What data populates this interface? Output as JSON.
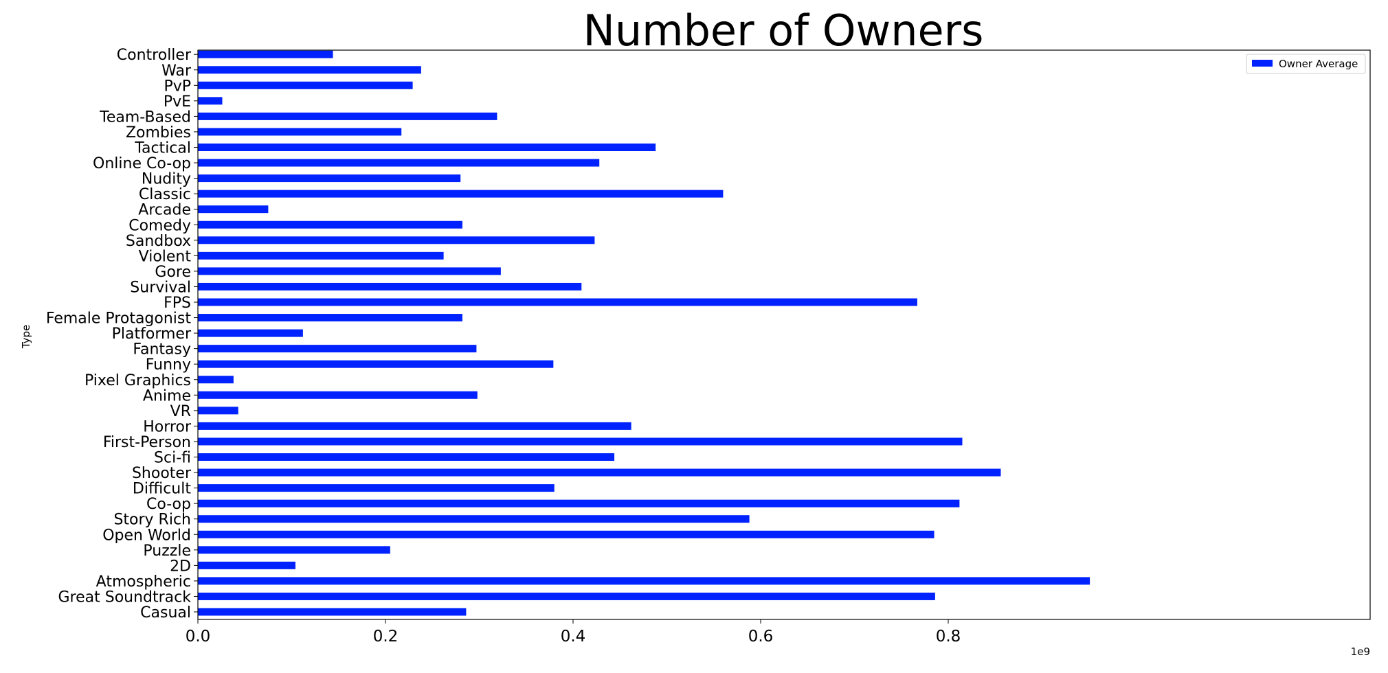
{
  "chart_data": {
    "type": "bar",
    "orientation": "horizontal",
    "title": "Number of Owners",
    "xlabel": "",
    "ylabel": "Type",
    "x_offset_label": "1e9",
    "xlim": [
      0,
      1.0
    ],
    "xticks": [
      "0.0",
      "0.2",
      "0.4",
      "0.6",
      "0.8"
    ],
    "xtick_values": [
      0.0,
      0.2,
      0.4,
      0.6,
      0.8
    ],
    "legend_position": "top-right",
    "grid": false,
    "categories": [
      "Casual",
      "Great Soundtrack",
      "Atmospheric",
      "2D",
      "Puzzle",
      "Open World",
      "Story Rich",
      "Co-op",
      "Difficult",
      "Shooter",
      "Sci-fi",
      "First-Person",
      "Horror",
      "VR",
      "Anime",
      "Pixel Graphics",
      "Funny",
      "Fantasy",
      "Platformer",
      "Female Protagonist",
      "FPS",
      "Survival",
      "Gore",
      "Violent",
      "Sandbox",
      "Comedy",
      "Arcade",
      "Classic",
      "Nudity",
      "Online Co-op",
      "Tactical",
      "Zombies",
      "Team-Based",
      "PvE",
      "PvP",
      "War",
      "Controller"
    ],
    "series": [
      {
        "name": "Owner Average",
        "color": "#0022ff",
        "values": [
          0.286,
          0.786,
          0.951,
          0.104,
          0.205,
          0.785,
          0.588,
          0.812,
          0.38,
          0.856,
          0.444,
          0.815,
          0.462,
          0.043,
          0.298,
          0.038,
          0.379,
          0.297,
          0.112,
          0.282,
          0.767,
          0.409,
          0.323,
          0.262,
          0.423,
          0.282,
          0.075,
          0.56,
          0.28,
          0.428,
          0.488,
          0.217,
          0.319,
          0.026,
          0.229,
          0.238,
          0.144
        ]
      }
    ]
  }
}
